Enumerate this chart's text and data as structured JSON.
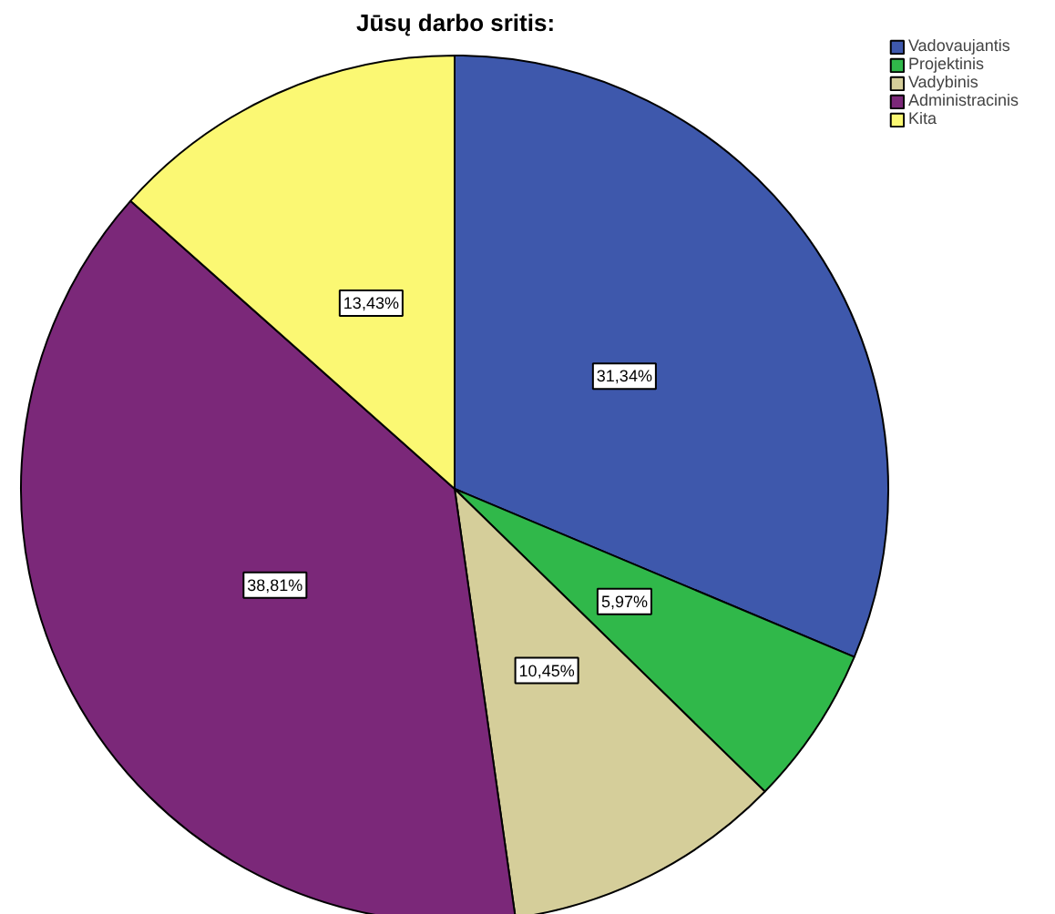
{
  "chart_data": {
    "type": "pie",
    "title": "Jūsų darbo sritis:",
    "categories": [
      "Vadovaujantis",
      "Projektinis",
      "Vadybinis",
      "Administracinis",
      "Kita"
    ],
    "values": [
      31.34,
      5.97,
      10.45,
      38.81,
      13.43
    ],
    "value_labels": [
      "31,34%",
      "5,97%",
      "10,45%",
      "38,81%",
      "13,43%"
    ],
    "colors": [
      "#3e58ac",
      "#30b84a",
      "#d5ce9a",
      "#7b2879",
      "#fbf873"
    ],
    "legend": "top right"
  }
}
